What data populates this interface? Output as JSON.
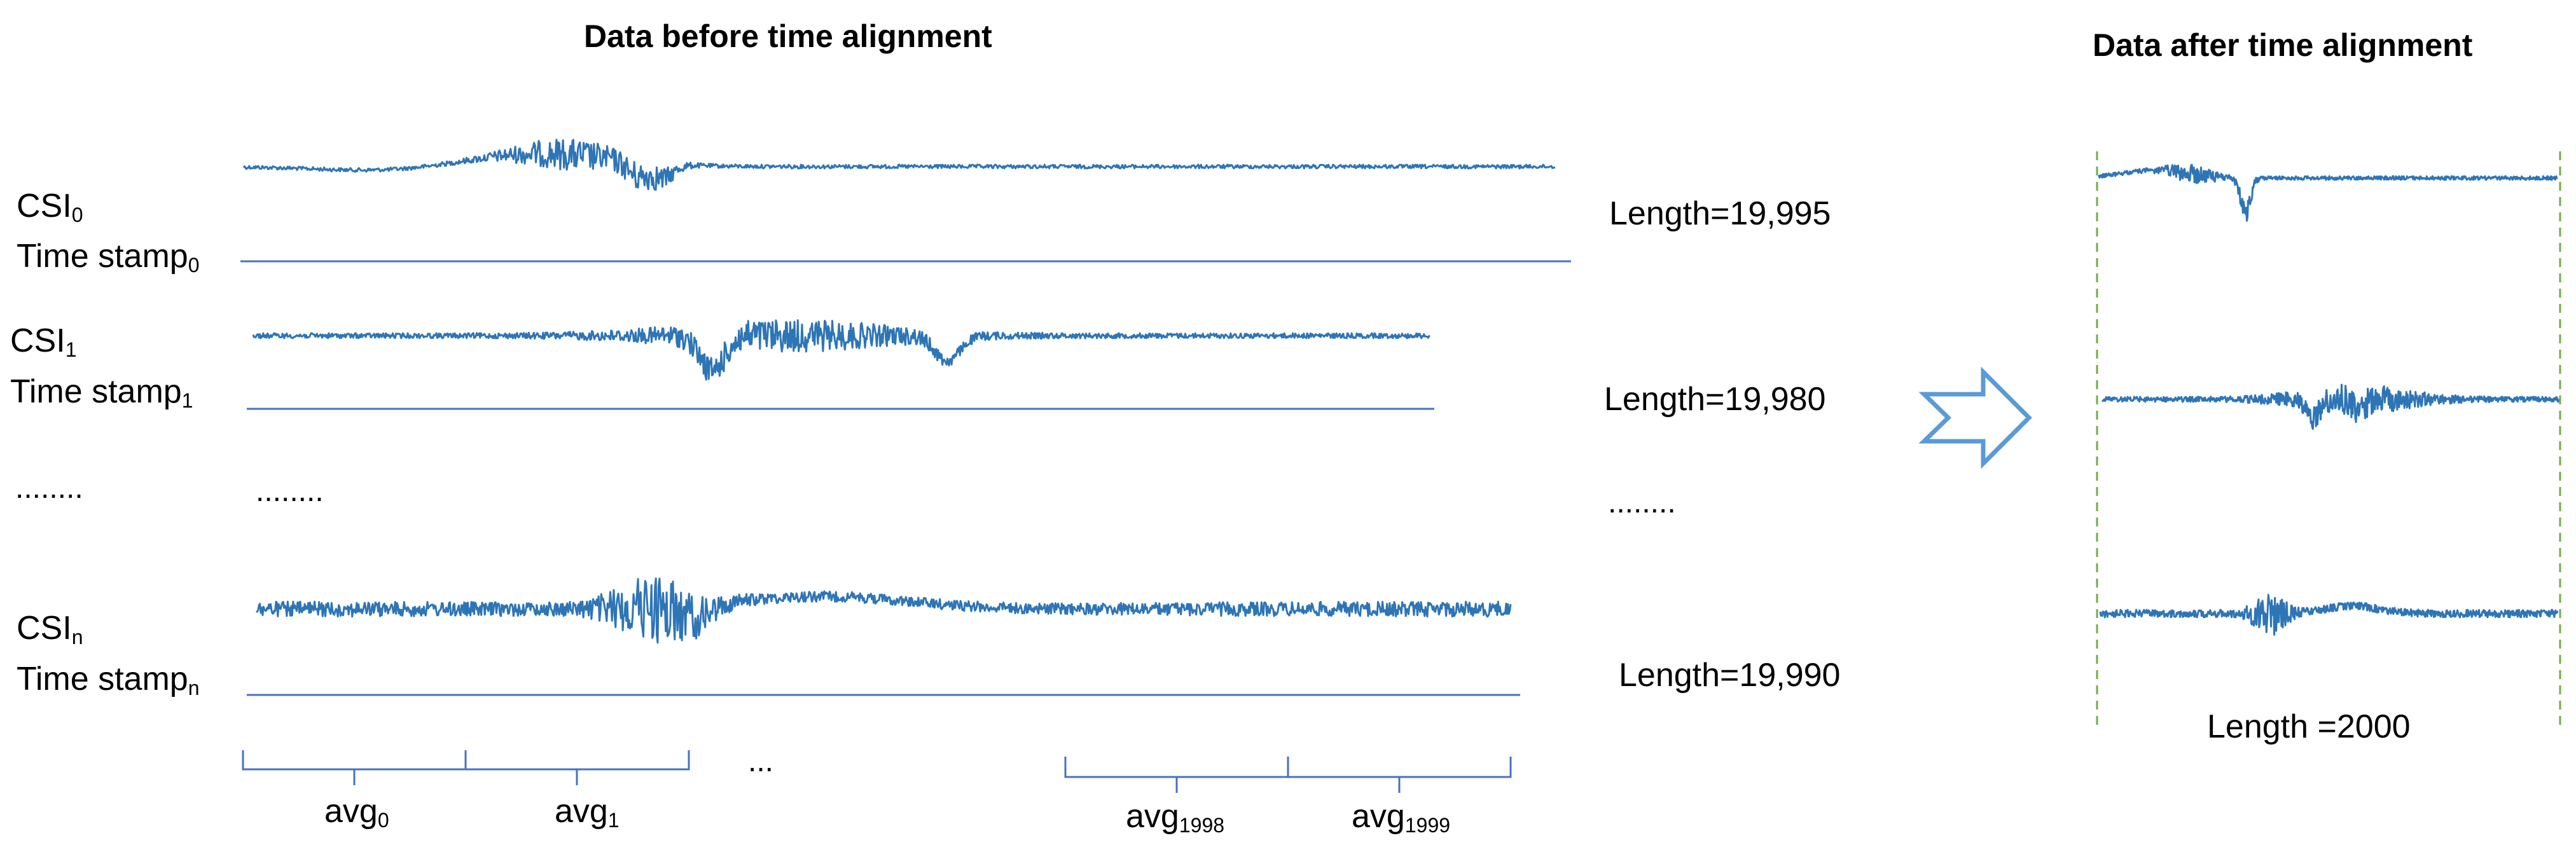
{
  "titles": {
    "before": "Data before time alignment",
    "after": "Data after time alignment"
  },
  "rows": [
    {
      "csi_base": "CSI",
      "csi_sub": "0",
      "ts_base": "Time stamp",
      "ts_sub": "0",
      "length": "Length=19,995"
    },
    {
      "csi_base": "CSI",
      "csi_sub": "1",
      "ts_base": "Time stamp",
      "ts_sub": "1",
      "length": "Length=19,980"
    },
    {
      "csi_base": "CSI",
      "csi_sub": "n",
      "ts_base": "Time stamp",
      "ts_sub": "n",
      "length": "Length=19,990"
    }
  ],
  "ellipsis": {
    "left": "........",
    "middle": "........",
    "length": "........",
    "brackets": "..."
  },
  "avg_labels": [
    {
      "base": "avg",
      "sub": "0"
    },
    {
      "base": "avg",
      "sub": "1"
    },
    {
      "base": "avg",
      "sub": "1998"
    },
    {
      "base": "avg",
      "sub": "1999"
    }
  ],
  "after_length": "Length =2000",
  "colors": {
    "signal": "#2e75b6",
    "baseline": "#4472c4",
    "arrow": "#5b9bd5",
    "divider": "#70ad47"
  },
  "icons": {
    "arrow": "right-arrow-outline-icon"
  }
}
